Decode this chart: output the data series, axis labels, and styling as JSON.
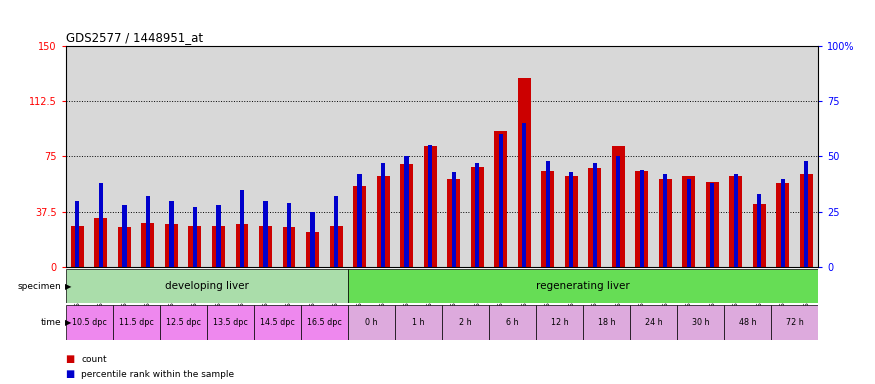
{
  "title": "GDS2577 / 1448951_at",
  "samples": [
    "GSM161128",
    "GSM161129",
    "GSM161130",
    "GSM161131",
    "GSM161132",
    "GSM161133",
    "GSM161134",
    "GSM161135",
    "GSM161136",
    "GSM161137",
    "GSM161138",
    "GSM161139",
    "GSM161108",
    "GSM161109",
    "GSM161110",
    "GSM161111",
    "GSM161112",
    "GSM161113",
    "GSM161114",
    "GSM161115",
    "GSM161116",
    "GSM161117",
    "GSM161118",
    "GSM161119",
    "GSM161120",
    "GSM161121",
    "GSM161122",
    "GSM161123",
    "GSM161124",
    "GSM161125",
    "GSM161126",
    "GSM161127"
  ],
  "count_values": [
    28,
    33,
    27,
    30,
    29,
    28,
    28,
    29,
    28,
    27,
    24,
    28,
    55,
    62,
    70,
    82,
    60,
    68,
    92,
    128,
    65,
    62,
    67,
    82,
    65,
    60,
    62,
    58,
    62,
    43,
    57,
    63
  ],
  "percentile_values": [
    30,
    38,
    28,
    32,
    30,
    27,
    28,
    35,
    30,
    29,
    25,
    32,
    42,
    47,
    50,
    55,
    43,
    47,
    60,
    65,
    48,
    43,
    47,
    50,
    44,
    42,
    40,
    38,
    42,
    33,
    40,
    48
  ],
  "ylim_left": [
    0,
    150
  ],
  "ylim_right": [
    0,
    100
  ],
  "yticks_left": [
    0,
    37.5,
    75,
    112.5,
    150
  ],
  "yticks_right": [
    0,
    25,
    50,
    75,
    100
  ],
  "ytick_labels_left": [
    "0",
    "37.5",
    "75",
    "112.5",
    "150"
  ],
  "ytick_labels_right": [
    "0",
    "25",
    "50",
    "75",
    "100%"
  ],
  "hlines": [
    37.5,
    75,
    112.5
  ],
  "bar_color": "#cc0000",
  "percentile_color": "#0000cc",
  "bar_width": 0.55,
  "specimen_groups": [
    {
      "label": "developing liver",
      "start": 0,
      "end": 12,
      "color": "#aaddaa"
    },
    {
      "label": "regenerating liver",
      "start": 12,
      "end": 32,
      "color": "#66dd55"
    }
  ],
  "time_groups": [
    {
      "label": "10.5 dpc",
      "start": 0,
      "end": 2
    },
    {
      "label": "11.5 dpc",
      "start": 2,
      "end": 4
    },
    {
      "label": "12.5 dpc",
      "start": 4,
      "end": 6
    },
    {
      "label": "13.5 dpc",
      "start": 6,
      "end": 8
    },
    {
      "label": "14.5 dpc",
      "start": 8,
      "end": 10
    },
    {
      "label": "16.5 dpc",
      "start": 10,
      "end": 12
    },
    {
      "label": "0 h",
      "start": 12,
      "end": 14
    },
    {
      "label": "1 h",
      "start": 14,
      "end": 16
    },
    {
      "label": "2 h",
      "start": 16,
      "end": 18
    },
    {
      "label": "6 h",
      "start": 18,
      "end": 20
    },
    {
      "label": "12 h",
      "start": 20,
      "end": 22
    },
    {
      "label": "18 h",
      "start": 22,
      "end": 24
    },
    {
      "label": "24 h",
      "start": 24,
      "end": 26
    },
    {
      "label": "30 h",
      "start": 26,
      "end": 28
    },
    {
      "label": "48 h",
      "start": 28,
      "end": 30
    },
    {
      "label": "72 h",
      "start": 30,
      "end": 32
    }
  ],
  "time_color_dpc": "#ee88ee",
  "time_color_h": "#ddaadd",
  "bg_color": "#d8d8d8",
  "legend_items": [
    {
      "color": "#cc0000",
      "label": "count"
    },
    {
      "color": "#0000cc",
      "label": "percentile rank within the sample"
    }
  ]
}
